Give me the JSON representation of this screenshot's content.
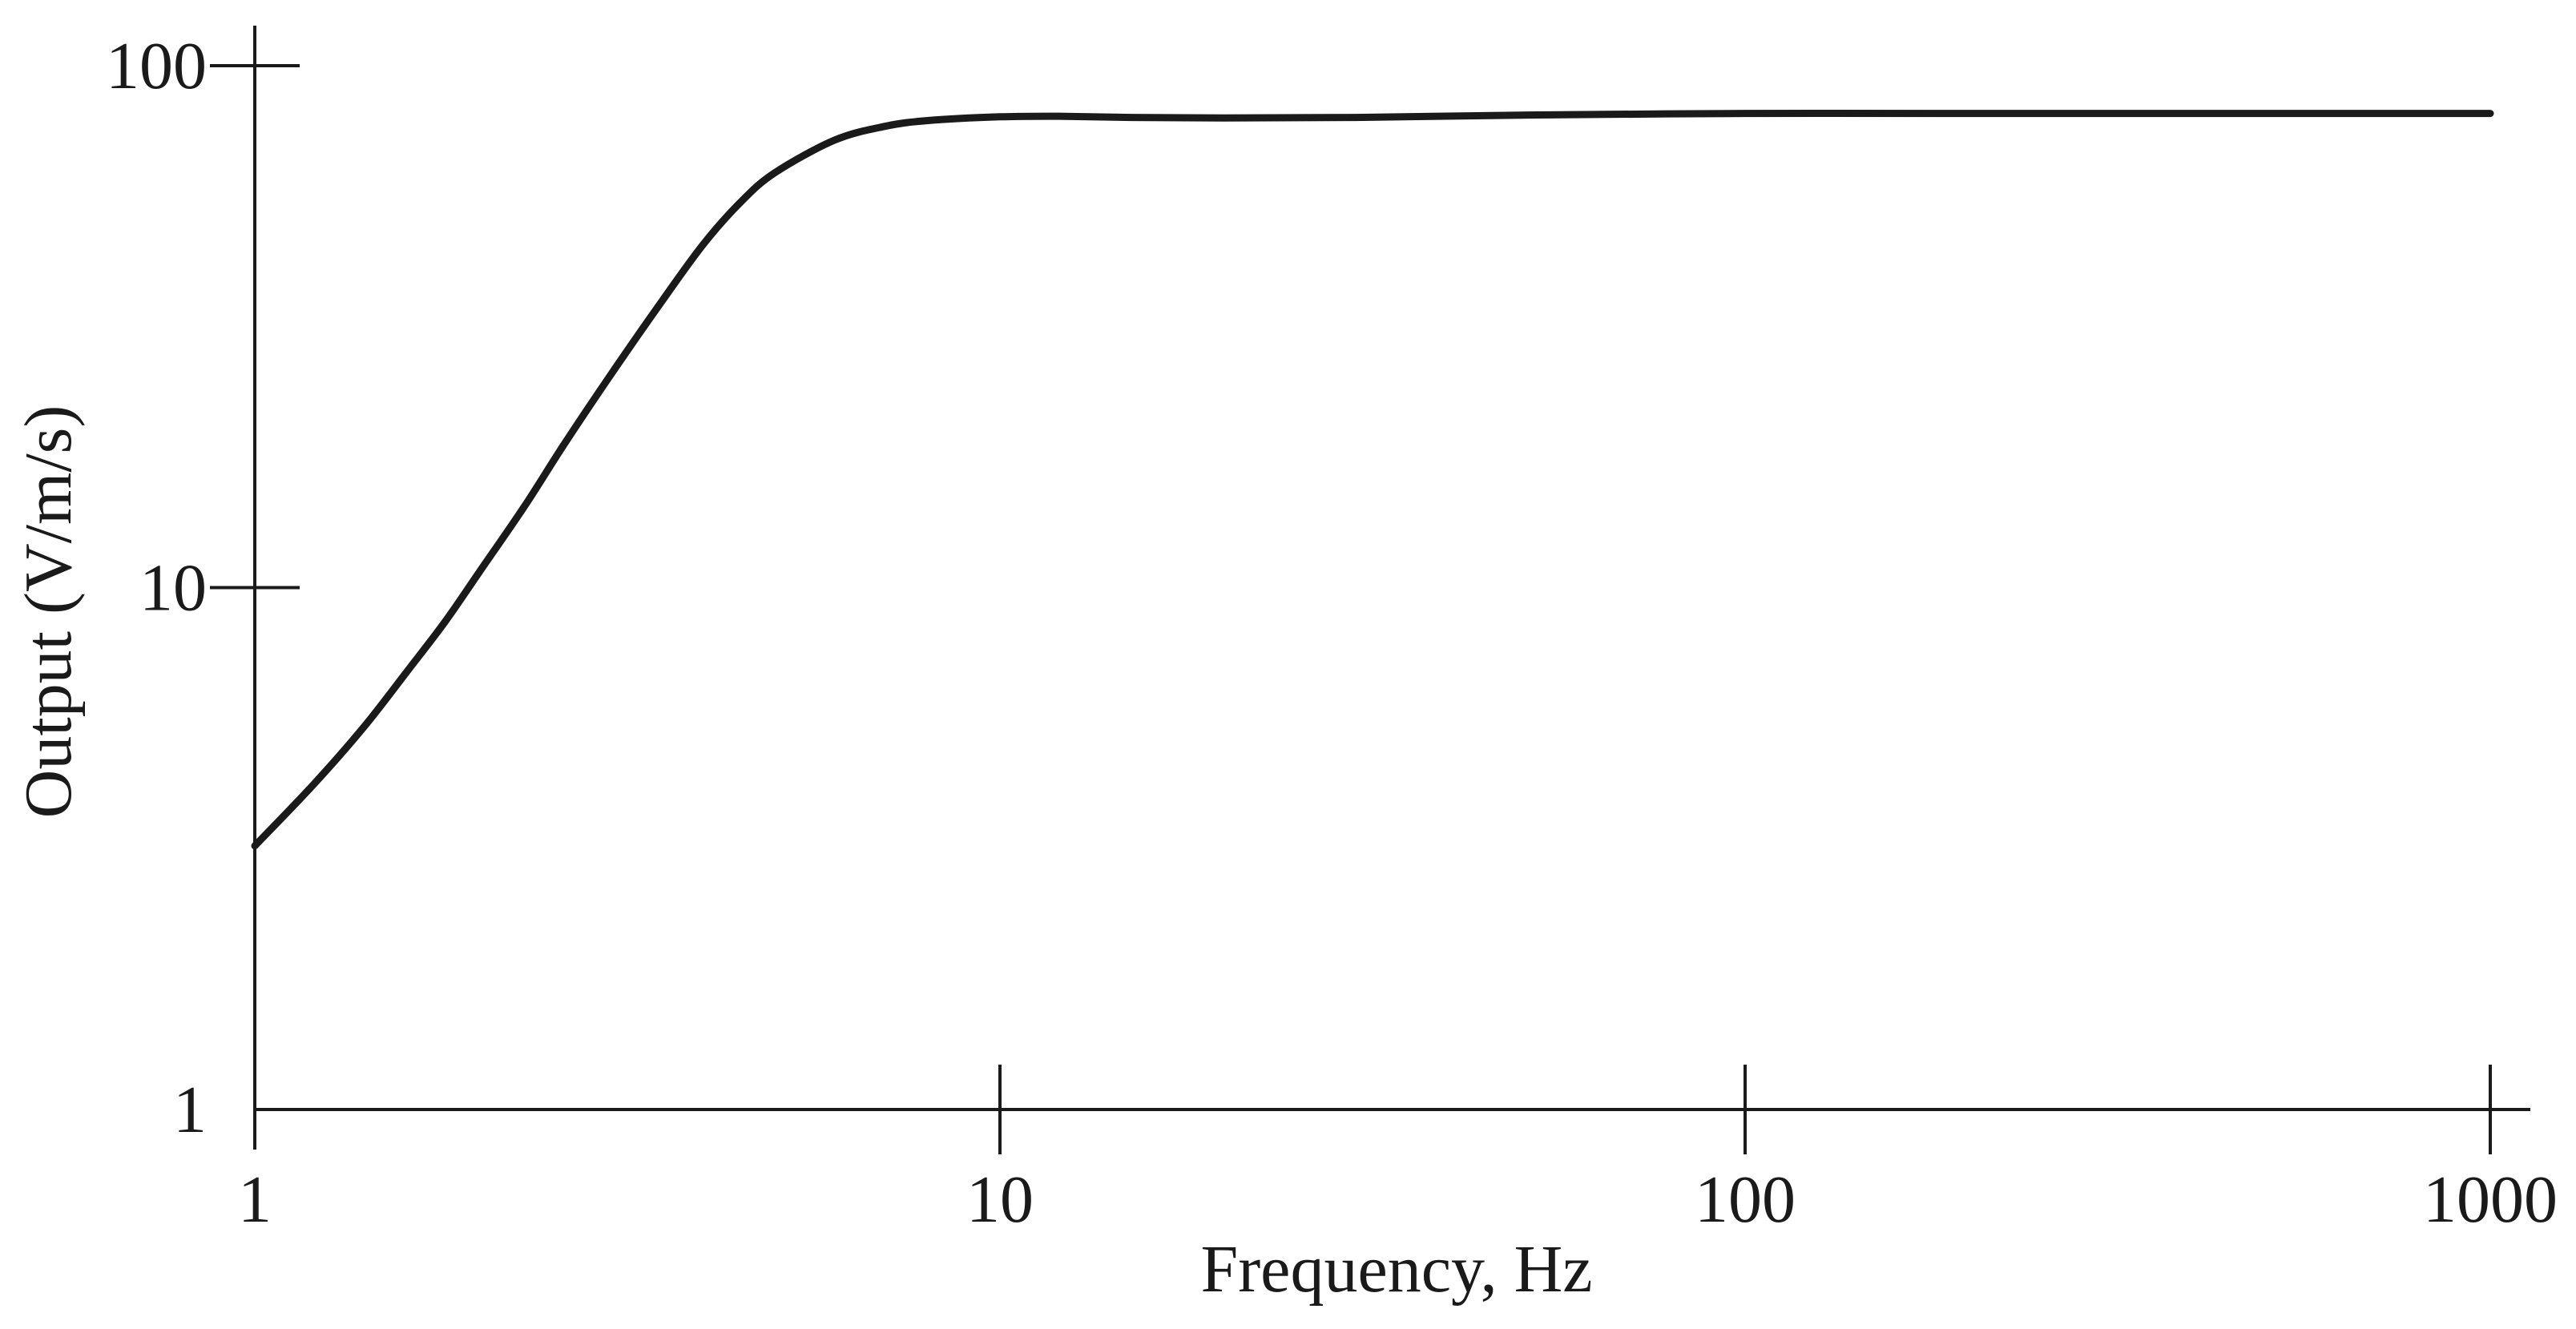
{
  "chart_data": {
    "type": "line",
    "title": "",
    "xlabel": "Frequency, Hz",
    "ylabel": "Output (V/m/s)",
    "x_scale": "log",
    "y_scale": "log",
    "xlim": [
      1,
      1000
    ],
    "ylim": [
      1,
      100
    ],
    "x_ticks": [
      {
        "value": 1,
        "label": "1"
      },
      {
        "value": 10,
        "label": "10"
      },
      {
        "value": 100,
        "label": "100"
      },
      {
        "value": 1000,
        "label": "1000"
      }
    ],
    "y_ticks": [
      {
        "value": 1,
        "label": "1"
      },
      {
        "value": 10,
        "label": "10"
      },
      {
        "value": 100,
        "label": "100"
      }
    ],
    "grid": false,
    "legend": "none",
    "series": [
      {
        "color": "#1a1a1a",
        "x": [
          1,
          1.2,
          1.4,
          1.6,
          1.8,
          2,
          2.3,
          2.6,
          3,
          3.5,
          4,
          4.5,
          5,
          6,
          7,
          8,
          10,
          12,
          15,
          20,
          30,
          50,
          100,
          200,
          500,
          1000
        ],
        "y": [
          3.2,
          4.2,
          5.4,
          6.9,
          8.6,
          10.7,
          14.3,
          18.8,
          25.5,
          35.0,
          45.5,
          55.0,
          62.5,
          72.0,
          76.5,
          78.5,
          79.8,
          80.0,
          79.6,
          79.4,
          79.6,
          80.4,
          81.0,
          81.0,
          81.0,
          81.0
        ]
      }
    ]
  }
}
